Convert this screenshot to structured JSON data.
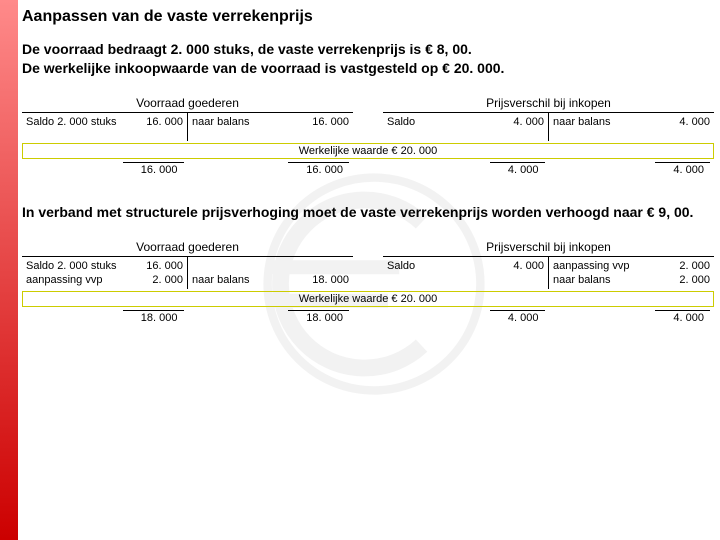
{
  "colors": {
    "sidebar_top": "#ff8a8a",
    "sidebar_bottom": "#cc0000",
    "border": "#000000",
    "highlight_border": "#cccc00",
    "euro_gray": "#9a9a9a"
  },
  "title": "Aanpassen van de vaste verrekenprijs",
  "intro_line1": "De voorraad bedraagt 2. 000 stuks, de vaste verrekenprijs is € 8, 00.",
  "intro_line2": "De werkelijke inkoopwaarde van de voorraad is vastgesteld op € 20. 000.",
  "mid_text": "In verband met structurele prijsverhoging moet de vaste verrekenprijs worden verhoogd naar € 9, 00.",
  "t1": {
    "left_head": "Voorraad goederen",
    "right_head": "Prijsverschil bij inkopen",
    "left_debit": [
      {
        "lbl": "Saldo 2. 000 stuks",
        "val": "16. 000"
      }
    ],
    "left_credit": [
      {
        "lbl": "naar balans",
        "val": "16. 000"
      }
    ],
    "right_debit": [
      {
        "lbl": "Saldo",
        "val": "4. 000"
      }
    ],
    "right_credit": [
      {
        "lbl": "naar balans",
        "val": "4. 000"
      }
    ],
    "note": "Werkelijke waarde € 20. 000",
    "left_foot_d": "16. 000",
    "left_foot_c": "16. 000",
    "right_foot_d": "4. 000",
    "right_foot_c": "4. 000"
  },
  "t2": {
    "left_head": "Voorraad goederen",
    "right_head": "Prijsverschil bij inkopen",
    "left_debit": [
      {
        "lbl": "Saldo 2. 000 stuks",
        "val": "16. 000"
      },
      {
        "lbl": "aanpassing vvp",
        "val": "2. 000"
      }
    ],
    "left_credit": [
      {
        "lbl": "naar balans",
        "val": "18. 000"
      }
    ],
    "right_debit": [
      {
        "lbl": "Saldo",
        "val": "4. 000"
      }
    ],
    "right_credit": [
      {
        "lbl": "aanpassing vvp",
        "val": "2. 000"
      },
      {
        "lbl": "naar balans",
        "val": "2. 000"
      }
    ],
    "note": "Werkelijke waarde € 20. 000",
    "left_foot_d": "18. 000",
    "left_foot_c": "18. 000",
    "right_foot_d": "4. 000",
    "right_foot_c": "4. 000"
  }
}
